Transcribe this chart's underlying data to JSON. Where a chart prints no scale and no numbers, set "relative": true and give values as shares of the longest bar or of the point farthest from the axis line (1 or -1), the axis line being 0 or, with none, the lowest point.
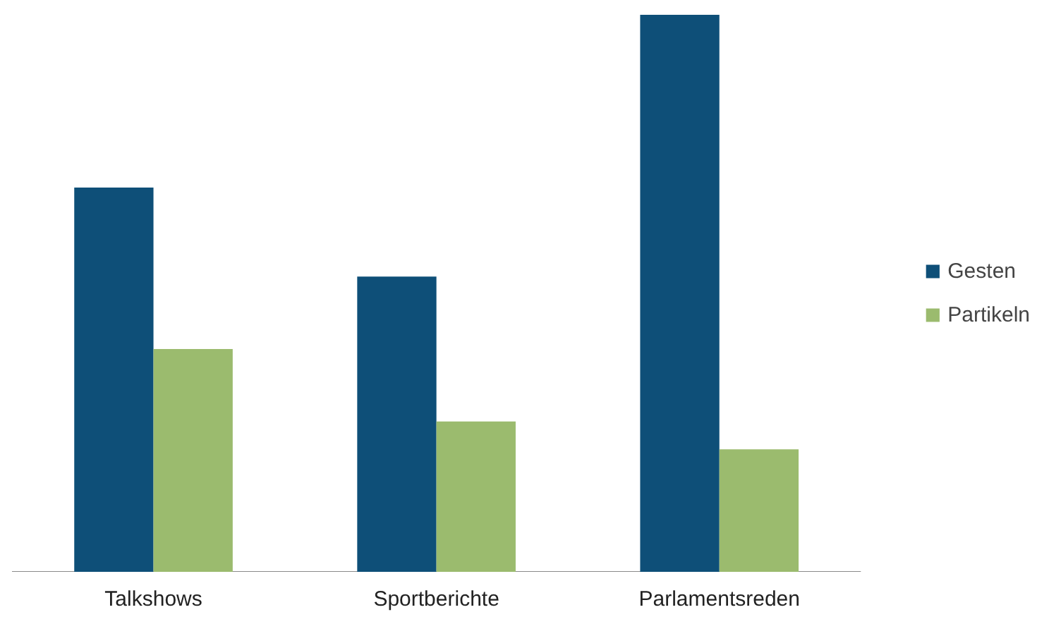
{
  "chart_data": {
    "type": "bar",
    "relative": true,
    "categories": [
      "Talkshows",
      "Sportberichte",
      "Parlamentsreden"
    ],
    "series": [
      {
        "name": "Gesten",
        "color": "#0e4f78",
        "values": [
          0.69,
          0.53,
          1.0
        ]
      },
      {
        "name": "Partikeln",
        "color": "#9bbb6e",
        "values": [
          0.4,
          0.27,
          0.22
        ]
      }
    ],
    "legend": "right",
    "grid": false
  }
}
